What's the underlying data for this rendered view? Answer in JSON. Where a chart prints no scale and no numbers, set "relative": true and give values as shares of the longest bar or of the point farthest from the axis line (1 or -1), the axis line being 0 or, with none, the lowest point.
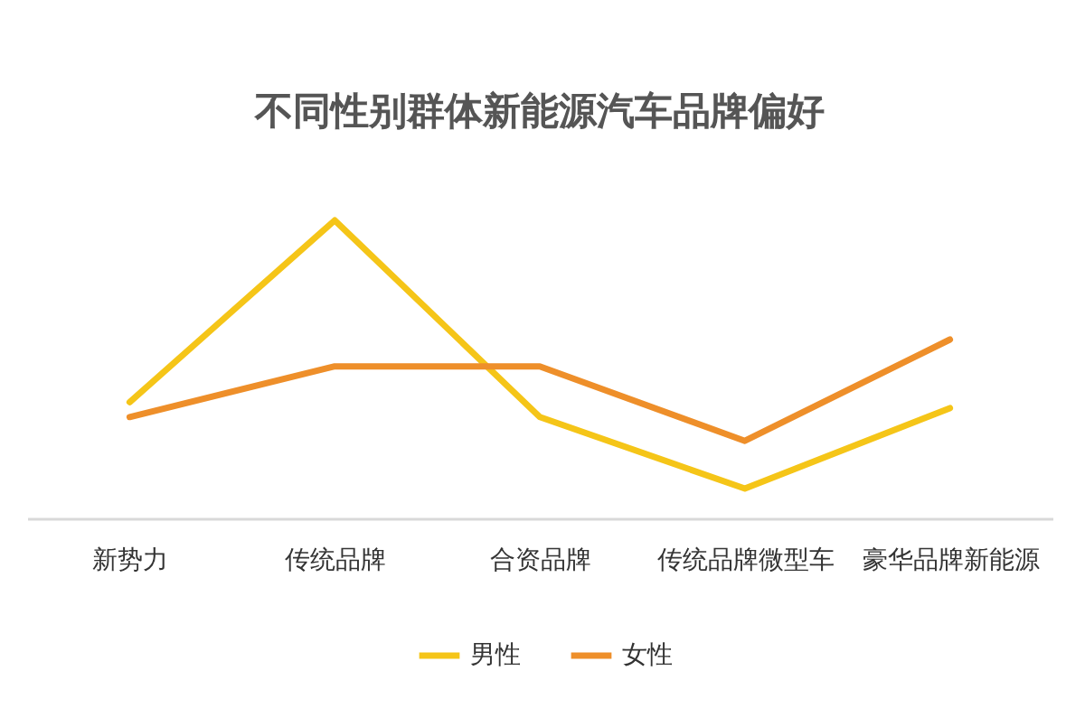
{
  "chart_data": {
    "type": "line",
    "title": "不同性别群体新能源汽车品牌偏好",
    "relative": true,
    "legend": "bottom",
    "categories": [
      "新势力",
      "传统品牌",
      "合资品牌",
      "传统品牌微型车",
      "豪华品牌新能源"
    ],
    "series": [
      {
        "name": "男性",
        "color": "#f5c518",
        "values": [
          0.39,
          1,
          0.34,
          0.1,
          0.37
        ]
      },
      {
        "name": "女性",
        "color": "#ee8f2a",
        "values": [
          0.34,
          0.51,
          0.51,
          0.26,
          0.6
        ]
      }
    ]
  }
}
